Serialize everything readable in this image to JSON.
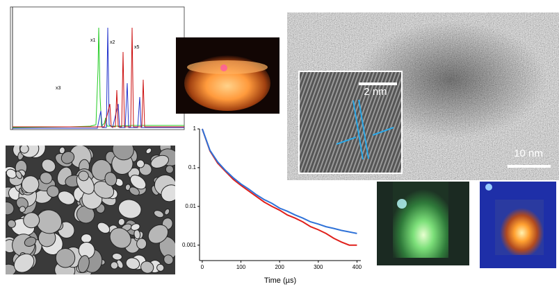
{
  "spectrum": {
    "peak_labels": [
      "x1",
      "x2",
      "x3",
      "x5"
    ]
  },
  "tem": {
    "main_scale": "10 nm",
    "inset_scale": "2 nm"
  },
  "chart_data": {
    "type": "line",
    "x_label": "Time (µs)",
    "x": [
      0,
      20,
      40,
      60,
      80,
      100,
      120,
      140,
      160,
      180,
      200,
      220,
      240,
      260,
      280,
      300,
      320,
      340,
      360,
      380,
      400
    ],
    "series": [
      {
        "color": "#e0201b",
        "values": [
          1,
          0.27,
          0.13,
          0.08,
          0.05,
          0.035,
          0.025,
          0.018,
          0.013,
          0.01,
          0.008,
          0.006,
          0.005,
          0.004,
          0.003,
          0.0025,
          0.002,
          0.0015,
          0.0012,
          0.001,
          0.001
        ]
      },
      {
        "color": "#2f72d8",
        "values": [
          1,
          0.28,
          0.14,
          0.085,
          0.055,
          0.038,
          0.028,
          0.02,
          0.015,
          0.012,
          0.009,
          0.0075,
          0.006,
          0.005,
          0.004,
          0.0035,
          0.003,
          0.0027,
          0.0024,
          0.0022,
          0.002
        ]
      }
    ],
    "xlim": [
      -7,
      410
    ],
    "ylim": [
      0.0004,
      1
    ],
    "xticks": [
      0,
      100,
      200,
      300,
      400
    ],
    "yticks": [
      1,
      0.1,
      0.01,
      0.001
    ],
    "ylog": true
  }
}
